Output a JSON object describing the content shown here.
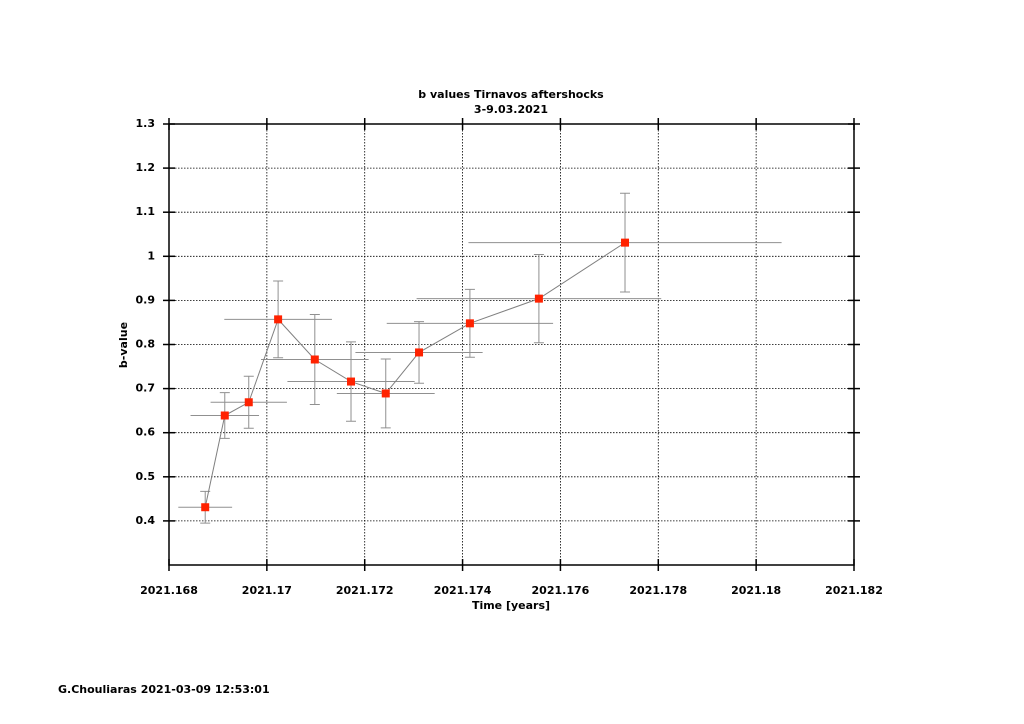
{
  "chart_data": {
    "type": "errorbar",
    "title": [
      "b values Tirnavos aftershocks",
      "3-9.03.2021"
    ],
    "xlabel": "Time [years]",
    "ylabel": "b-value",
    "xlim": [
      2021.168,
      2021.182
    ],
    "xticks": [
      2021.168,
      2021.17,
      2021.172,
      2021.174,
      2021.176,
      2021.178,
      2021.18,
      2021.182
    ],
    "ylim": [
      0.3,
      1.3
    ],
    "yticks": [
      0.4,
      0.5,
      0.6,
      0.7,
      0.8,
      0.9,
      1,
      1.1,
      1.2,
      1.3
    ],
    "grid": true,
    "series": [
      {
        "color": "#ff2200",
        "line_color": "#808080",
        "error_color": "#909090",
        "x": [
          2021.16874,
          2021.16914,
          2021.16963,
          2021.17023,
          2021.17098,
          2021.17172,
          2021.17243,
          2021.17311,
          2021.17415,
          2021.17556,
          2021.17732
        ],
        "values": [
          0.431,
          0.639,
          0.669,
          0.857,
          0.766,
          0.716,
          0.689,
          0.782,
          0.848,
          0.904,
          1.031
        ],
        "xerr": [
          0.00055,
          0.0007,
          0.00078,
          0.0011,
          0.0011,
          0.0013,
          0.001,
          0.0013,
          0.0017,
          0.0025,
          0.0032
        ],
        "yerr": [
          0.036,
          0.052,
          0.059,
          0.087,
          0.102,
          0.09,
          0.078,
          0.07,
          0.077,
          0.1,
          0.112
        ]
      }
    ]
  },
  "footer": "G.Chouliaras 2021-03-09 12:53:01"
}
